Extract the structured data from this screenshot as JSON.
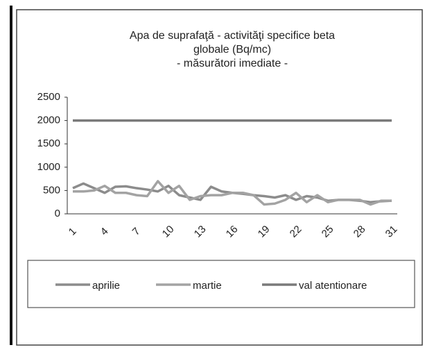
{
  "chart_data": {
    "type": "line",
    "title": [
      "Apa de suprafaţă - activităţi specifice beta",
      "globale (Bq/mc)",
      "- măsurători imediate -"
    ],
    "categories": [
      "1",
      null,
      null,
      "4",
      null,
      null,
      "7",
      null,
      null,
      "10",
      null,
      null,
      "13",
      null,
      null,
      "16",
      null,
      null,
      "19",
      null,
      null,
      "22",
      null,
      null,
      "25",
      null,
      null,
      "28",
      null,
      null,
      "31"
    ],
    "series": [
      {
        "name": "aprilie",
        "color": "#8c8c8c",
        "values": [
          550,
          650,
          550,
          450,
          580,
          590,
          550,
          520,
          480,
          600,
          400,
          350,
          300,
          580,
          480,
          450,
          430,
          400,
          380,
          350,
          400,
          300,
          380,
          350,
          280,
          300,
          300,
          280,
          250,
          270,
          280
        ]
      },
      {
        "name": "martie",
        "color": "#a3a3a3",
        "values": [
          480,
          480,
          500,
          600,
          450,
          450,
          400,
          380,
          700,
          450,
          600,
          300,
          380,
          400,
          400,
          450,
          450,
          400,
          200,
          220,
          300,
          450,
          250,
          400,
          250,
          300,
          300,
          300,
          200,
          280,
          280
        ]
      },
      {
        "name": "val atentionare",
        "color": "#7a7a7a",
        "values": [
          2000,
          2000,
          2000,
          2000,
          2000,
          2000,
          2000,
          2000,
          2000,
          2000,
          2000,
          2000,
          2000,
          2000,
          2000,
          2000,
          2000,
          2000,
          2000,
          2000,
          2000,
          2000,
          2000,
          2000,
          2000,
          2000,
          2000,
          2000,
          2000,
          2000,
          2000
        ]
      }
    ],
    "ylim": [
      0,
      2500
    ],
    "yticks": [
      0,
      500,
      1000,
      1500,
      2000,
      2500
    ],
    "grid": false,
    "legend": "bottom"
  }
}
